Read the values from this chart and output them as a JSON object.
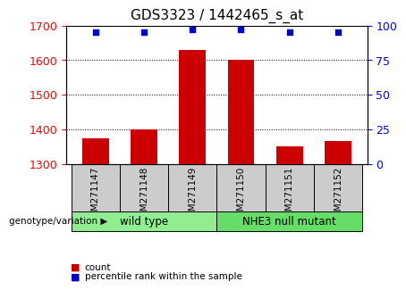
{
  "title": "GDS3323 / 1442465_s_at",
  "samples": [
    "GSM271147",
    "GSM271148",
    "GSM271149",
    "GSM271150",
    "GSM271151",
    "GSM271152"
  ],
  "counts": [
    1375,
    1400,
    1630,
    1600,
    1350,
    1365
  ],
  "percentiles": [
    95,
    95,
    97,
    97,
    95,
    95
  ],
  "y_min": 1300,
  "y_max": 1700,
  "y_ticks": [
    1300,
    1400,
    1500,
    1600,
    1700
  ],
  "y2_ticks": [
    0,
    25,
    50,
    75,
    100
  ],
  "bar_color": "#cc0000",
  "dot_color": "#0000cc",
  "bar_width": 0.55,
  "groups": [
    {
      "label": "wild type",
      "start": 0,
      "end": 3,
      "color": "#90ee90"
    },
    {
      "label": "NHE3 null mutant",
      "start": 3,
      "end": 6,
      "color": "#66dd66"
    }
  ],
  "group_row_label": "genotype/variation",
  "legend_items": [
    {
      "label": "count",
      "color": "#cc0000"
    },
    {
      "label": "percentile rank within the sample",
      "color": "#0000cc"
    }
  ],
  "xlabel_area_color": "#cccccc",
  "tick_label_fontsize": 9,
  "title_fontsize": 11,
  "grid_ticks": [
    1400,
    1500,
    1600
  ]
}
